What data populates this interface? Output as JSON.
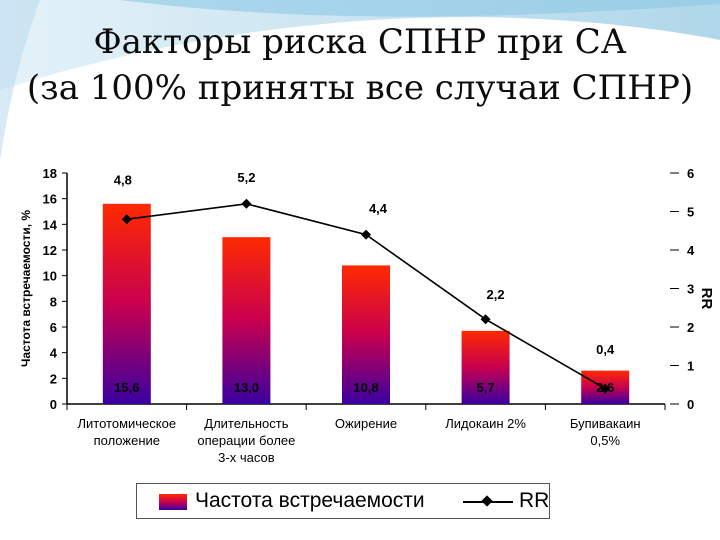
{
  "slide": {
    "title_line1": "Факторы риска СПНР при СА",
    "title_line2": "(за 100% приняты все случаи СПНР)"
  },
  "chart_data": {
    "type": "bar",
    "categories": [
      [
        "Литотомическое",
        "положение"
      ],
      [
        "Длительность",
        "операции более",
        "3-х часов"
      ],
      [
        "Ожирение"
      ],
      [
        "Лидокаин 2%"
      ],
      [
        "Бупивакаин",
        "0,5%"
      ]
    ],
    "series": [
      {
        "name": "Частота встречаемости",
        "axis": "left",
        "values": [
          15.6,
          13.0,
          10.8,
          5.7,
          2.6
        ],
        "labels": [
          "15,6",
          "13,0",
          "10,8",
          "5,7",
          "2,6"
        ]
      },
      {
        "name": "RR",
        "axis": "right",
        "type": "line",
        "values": [
          4.8,
          5.2,
          4.4,
          2.2,
          0.4
        ],
        "labels": [
          "4,8",
          "5,2",
          "4,4",
          "2,2",
          "0,4"
        ]
      }
    ],
    "ylabel": "Частота встречаемости, %",
    "y2label": "RR",
    "ylim": [
      0,
      18
    ],
    "y2lim": [
      0,
      6
    ],
    "yticks": [
      "0",
      "2",
      "4",
      "6",
      "8",
      "10",
      "12",
      "14",
      "16",
      "18"
    ],
    "y2ticks": [
      "0",
      "1",
      "2",
      "3",
      "4",
      "5",
      "6"
    ],
    "legend": "bottom",
    "colors": {
      "bar_top": "#ff2a00",
      "bar_mid": "#c8004f",
      "bar_bottom": "#3a00a0",
      "line": "#000000"
    }
  }
}
